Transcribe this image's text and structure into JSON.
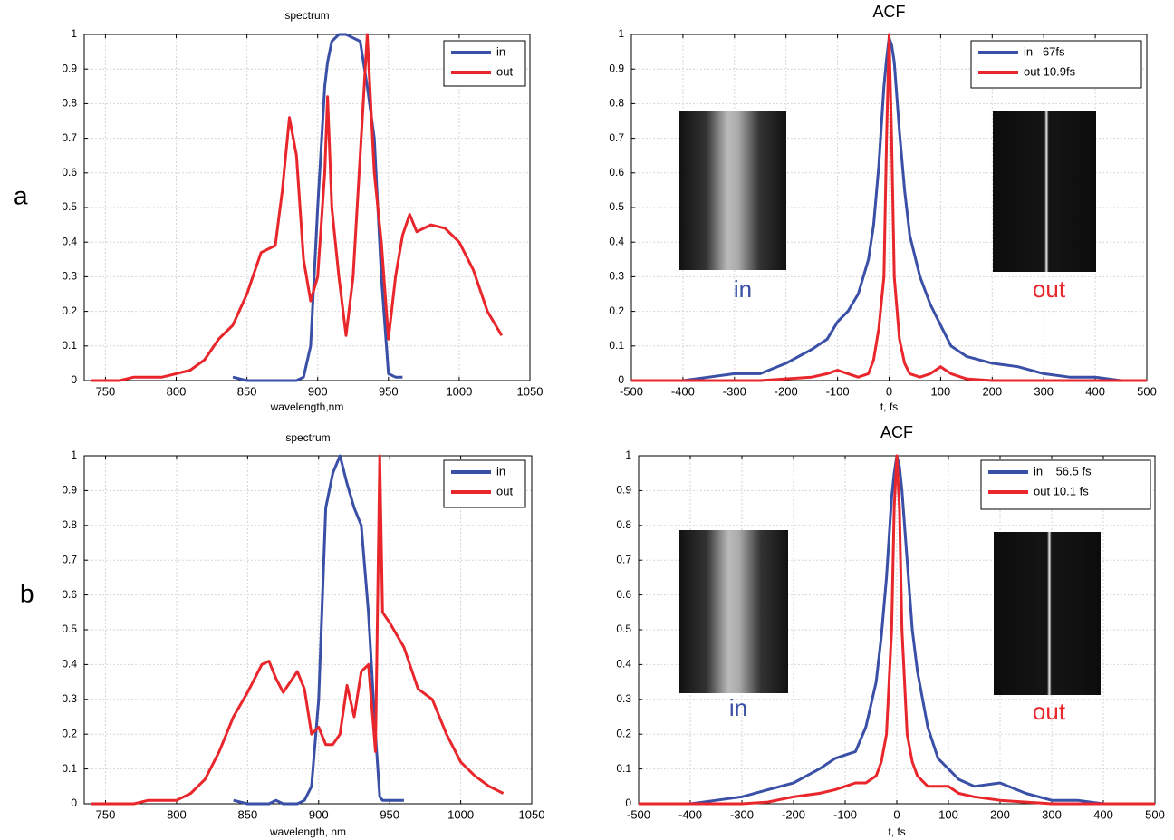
{
  "panel_labels": [
    "a",
    "b"
  ],
  "chart_data": [
    {
      "type": "line",
      "title": "spectrum",
      "xlabel": "wavelength,nm",
      "x": [
        740,
        750,
        760,
        770,
        780,
        790,
        800,
        810,
        820,
        830,
        840,
        850,
        860,
        870,
        875,
        880,
        885,
        890,
        895,
        900,
        905,
        907,
        910,
        915,
        920,
        925,
        930,
        935,
        940,
        945,
        950,
        955,
        960,
        965,
        970,
        980,
        990,
        1000,
        1010,
        1020,
        1030
      ],
      "series": [
        {
          "name": "in",
          "color": "#3a4fa6",
          "values": [
            null,
            null,
            null,
            null,
            null,
            null,
            null,
            null,
            null,
            null,
            0.01,
            0,
            0,
            0,
            0,
            0,
            0,
            0.01,
            0.1,
            0.5,
            0.85,
            0.92,
            0.98,
            1.0,
            1.0,
            0.99,
            0.98,
            0.85,
            0.7,
            0.3,
            0.02,
            0.01,
            0.01,
            null,
            null,
            null,
            null,
            null,
            null,
            null,
            null
          ]
        },
        {
          "name": "out",
          "color": "#e8262b",
          "values": [
            0,
            0,
            0,
            0.01,
            0.01,
            0.01,
            0.02,
            0.03,
            0.06,
            0.12,
            0.16,
            0.25,
            0.37,
            0.39,
            0.55,
            0.76,
            0.65,
            0.35,
            0.23,
            0.3,
            0.6,
            0.82,
            0.5,
            0.3,
            0.13,
            0.3,
            0.65,
            1.0,
            0.6,
            0.4,
            0.12,
            0.3,
            0.42,
            0.48,
            0.43,
            0.45,
            0.44,
            0.4,
            0.32,
            0.2,
            0.13
          ]
        }
      ],
      "xlim": [
        735,
        1050
      ],
      "ylim": [
        0,
        1
      ],
      "xticks": [
        750,
        800,
        850,
        900,
        950,
        1000,
        1050
      ],
      "yticks": [
        0,
        0.1,
        0.2,
        0.3,
        0.4,
        0.5,
        0.6,
        0.7,
        0.8,
        0.9,
        1
      ],
      "grid": true,
      "legend": "upper right"
    },
    {
      "type": "line",
      "title": "ACF",
      "xlabel": "t, fs",
      "x": [
        -500,
        -450,
        -400,
        -350,
        -300,
        -250,
        -200,
        -150,
        -120,
        -100,
        -80,
        -60,
        -40,
        -30,
        -20,
        -10,
        -5,
        0,
        5,
        10,
        20,
        30,
        40,
        60,
        80,
        100,
        120,
        150,
        200,
        250,
        300,
        350,
        400,
        450,
        500
      ],
      "series": [
        {
          "name": "in   67fs",
          "color": "#3a4fa6",
          "values": [
            0,
            0,
            0,
            0.01,
            0.02,
            0.02,
            0.05,
            0.09,
            0.12,
            0.17,
            0.2,
            0.25,
            0.35,
            0.45,
            0.62,
            0.85,
            0.93,
            0.99,
            0.97,
            0.92,
            0.72,
            0.55,
            0.42,
            0.3,
            0.22,
            0.16,
            0.1,
            0.07,
            0.05,
            0.04,
            0.02,
            0.01,
            0.01,
            0,
            0
          ]
        },
        {
          "name": "out 10.9fs",
          "color": "#e8262b",
          "values": [
            0,
            0,
            0,
            0,
            0,
            0,
            0.005,
            0.01,
            0.02,
            0.03,
            0.02,
            0.01,
            0.02,
            0.06,
            0.15,
            0.3,
            0.7,
            1.0,
            0.7,
            0.3,
            0.12,
            0.05,
            0.02,
            0.01,
            0.02,
            0.04,
            0.02,
            0.005,
            0,
            0,
            0,
            0,
            0,
            0,
            0
          ]
        }
      ],
      "xlim": [
        -500,
        500
      ],
      "ylim": [
        0,
        1
      ],
      "xticks": [
        -500,
        -400,
        -300,
        -200,
        -100,
        0,
        100,
        200,
        300,
        400,
        500
      ],
      "yticks": [
        0,
        0.1,
        0.2,
        0.3,
        0.4,
        0.5,
        0.6,
        0.7,
        0.8,
        0.9,
        1
      ],
      "grid": true,
      "legend": "upper right",
      "inset_labels": [
        "in",
        "out"
      ]
    },
    {
      "type": "line",
      "title": "spectrum",
      "xlabel": "wavelength, nm",
      "x": [
        740,
        750,
        760,
        770,
        780,
        790,
        800,
        810,
        820,
        830,
        840,
        850,
        860,
        865,
        870,
        875,
        880,
        885,
        890,
        895,
        900,
        905,
        910,
        915,
        920,
        925,
        930,
        935,
        940,
        943,
        945,
        950,
        960,
        970,
        980,
        990,
        1000,
        1010,
        1020,
        1030
      ],
      "series": [
        {
          "name": "in",
          "color": "#3a4fa6",
          "values": [
            null,
            null,
            null,
            null,
            null,
            null,
            null,
            null,
            null,
            null,
            0.01,
            0,
            0,
            0,
            0.01,
            0,
            0,
            0,
            0.01,
            0.05,
            0.3,
            0.85,
            0.95,
            1.0,
            0.92,
            0.85,
            0.8,
            0.55,
            0.2,
            0.02,
            0.01,
            0.01,
            0.01,
            null,
            null,
            null,
            null,
            null,
            null,
            null
          ]
        },
        {
          "name": "out",
          "color": "#e8262b",
          "values": [
            0,
            0,
            0,
            0,
            0.01,
            0.01,
            0.01,
            0.03,
            0.07,
            0.15,
            0.25,
            0.32,
            0.4,
            0.41,
            0.36,
            0.32,
            0.35,
            0.38,
            0.33,
            0.2,
            0.22,
            0.17,
            0.17,
            0.2,
            0.34,
            0.25,
            0.38,
            0.4,
            0.15,
            1.0,
            0.55,
            0.52,
            0.45,
            0.33,
            0.3,
            0.2,
            0.12,
            0.08,
            0.05,
            0.03
          ]
        }
      ],
      "xlim": [
        735,
        1050
      ],
      "ylim": [
        0,
        1
      ],
      "xticks": [
        750,
        800,
        850,
        900,
        950,
        1000,
        1050
      ],
      "yticks": [
        0,
        0.1,
        0.2,
        0.3,
        0.4,
        0.5,
        0.6,
        0.7,
        0.8,
        0.9,
        1
      ],
      "grid": true,
      "legend": "upper right"
    },
    {
      "type": "line",
      "title": "ACF",
      "xlabel": "t, fs",
      "x": [
        -500,
        -450,
        -400,
        -350,
        -300,
        -250,
        -200,
        -150,
        -120,
        -100,
        -80,
        -60,
        -40,
        -30,
        -20,
        -10,
        -5,
        0,
        5,
        10,
        20,
        30,
        40,
        60,
        80,
        100,
        120,
        150,
        200,
        250,
        300,
        350,
        400,
        450,
        500
      ],
      "series": [
        {
          "name": "in    56.5 fs",
          "color": "#3a4fa6",
          "values": [
            0,
            0,
            0,
            0.01,
            0.02,
            0.04,
            0.06,
            0.1,
            0.13,
            0.14,
            0.15,
            0.22,
            0.35,
            0.48,
            0.65,
            0.88,
            0.95,
            1.0,
            0.97,
            0.9,
            0.7,
            0.5,
            0.38,
            0.22,
            0.13,
            0.1,
            0.07,
            0.05,
            0.06,
            0.03,
            0.01,
            0.01,
            0,
            0,
            0
          ]
        },
        {
          "name": "out 10.1 fs",
          "color": "#e8262b",
          "values": [
            0,
            0,
            0,
            0,
            0,
            0.005,
            0.02,
            0.03,
            0.04,
            0.05,
            0.06,
            0.06,
            0.08,
            0.12,
            0.2,
            0.5,
            0.85,
            1.0,
            0.85,
            0.5,
            0.2,
            0.12,
            0.08,
            0.05,
            0.05,
            0.05,
            0.03,
            0.02,
            0.01,
            0.005,
            0,
            0,
            0,
            0,
            0
          ]
        }
      ],
      "xlim": [
        -500,
        500
      ],
      "ylim": [
        0,
        1
      ],
      "xticks": [
        -500,
        -400,
        -300,
        -200,
        -100,
        0,
        100,
        200,
        300,
        400,
        500
      ],
      "yticks": [
        0,
        0.1,
        0.2,
        0.3,
        0.4,
        0.5,
        0.6,
        0.7,
        0.8,
        0.9,
        1
      ],
      "grid": true,
      "legend": "upper right",
      "inset_labels": [
        "in",
        "out"
      ]
    }
  ]
}
